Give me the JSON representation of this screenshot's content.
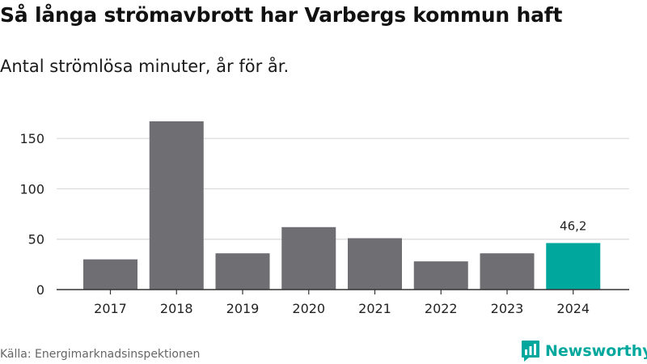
{
  "header": {
    "title": "Så långa strömavbrott har Varbergs kommun haft",
    "subtitle": "Antal strömlösa minuter, år för år."
  },
  "footer": {
    "source": "Källa: Energimarknadsinspektionen",
    "brand": "Newsworthy",
    "brand_icon": "bar-chart-speech-bubble-icon"
  },
  "colors": {
    "bar": "#6e6e73",
    "highlight": "#00a79d",
    "grid": "#d9d9d9",
    "axis": "#333333"
  },
  "chart_data": {
    "type": "bar",
    "categories": [
      "2017",
      "2018",
      "2019",
      "2020",
      "2021",
      "2022",
      "2023",
      "2024"
    ],
    "values": [
      30,
      167,
      36,
      62,
      51,
      28,
      36,
      46.2
    ],
    "highlight_index": 7,
    "data_labels": {
      "2024": "46,2"
    },
    "y_ticks": [
      0,
      50,
      100,
      150
    ],
    "ylim": [
      0,
      167
    ],
    "grid": true,
    "xlabel": "",
    "ylabel": ""
  }
}
